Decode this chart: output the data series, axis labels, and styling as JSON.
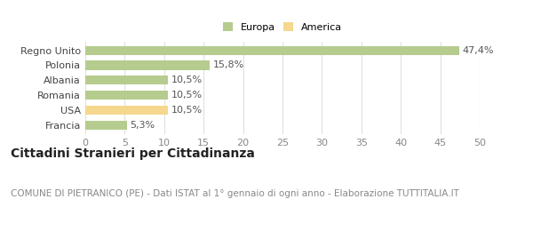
{
  "categories": [
    "Francia",
    "USA",
    "Romania",
    "Albania",
    "Polonia",
    "Regno Unito"
  ],
  "values": [
    5.3,
    10.5,
    10.5,
    10.5,
    15.8,
    47.4
  ],
  "labels": [
    "5,3%",
    "10,5%",
    "10,5%",
    "10,5%",
    "15,8%",
    "47,4%"
  ],
  "colors": [
    "#b5cc8e",
    "#f5d78e",
    "#b5cc8e",
    "#b5cc8e",
    "#b5cc8e",
    "#b5cc8e"
  ],
  "legend_items": [
    {
      "label": "Europa",
      "color": "#b5cc8e"
    },
    {
      "label": "America",
      "color": "#f5d78e"
    }
  ],
  "xlim": [
    0,
    50
  ],
  "xticks": [
    0,
    5,
    10,
    15,
    20,
    25,
    30,
    35,
    40,
    45,
    50
  ],
  "title": "Cittadini Stranieri per Cittadinanza",
  "subtitle": "COMUNE DI PIETRANICO (PE) - Dati ISTAT al 1° gennaio di ogni anno - Elaborazione TUTTITALIA.IT",
  "background_color": "#ffffff",
  "grid_color": "#e0e0e0",
  "title_fontsize": 10,
  "subtitle_fontsize": 7.5,
  "label_fontsize": 8,
  "tick_fontsize": 8
}
